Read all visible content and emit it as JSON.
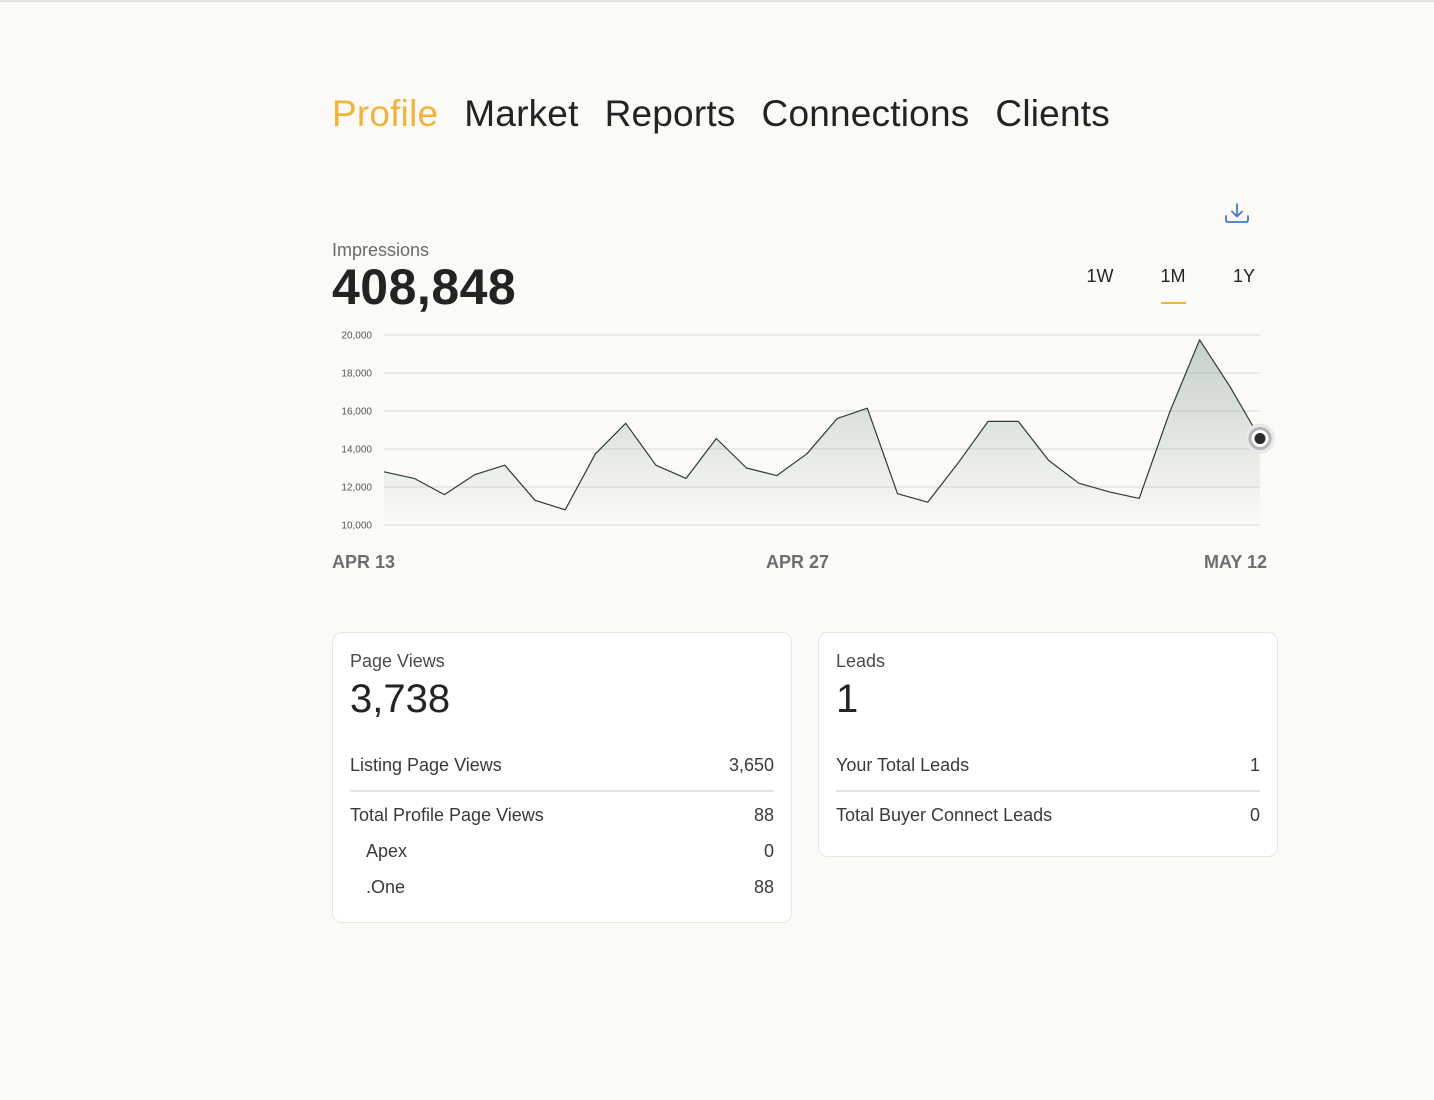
{
  "nav": {
    "tabs": [
      {
        "label": "Profile",
        "active": true
      },
      {
        "label": "Market",
        "active": false
      },
      {
        "label": "Reports",
        "active": false
      },
      {
        "label": "Connections",
        "active": false
      },
      {
        "label": "Clients",
        "active": false
      }
    ]
  },
  "impressions": {
    "label": "Impressions",
    "value": "408,848"
  },
  "ranges": [
    {
      "label": "1W",
      "active": false
    },
    {
      "label": "1M",
      "active": true
    },
    {
      "label": "1Y",
      "active": false
    }
  ],
  "colors": {
    "accent": "#f0b43c",
    "line": "#2e3b31",
    "area": "#9aae9e"
  },
  "icons": {
    "download": "download-icon"
  },
  "chart_data": {
    "type": "area",
    "ylim": [
      10000,
      20000
    ],
    "yticks": [
      "20,000",
      "18,000",
      "16,000",
      "14,000",
      "12,000",
      "10,000"
    ],
    "ytick_values": [
      20000,
      18000,
      16000,
      14000,
      12000,
      10000
    ],
    "xticks": [
      {
        "label": "APR 13",
        "index": 0
      },
      {
        "label": "APR 27",
        "index": 14
      },
      {
        "label": "MAY 12",
        "index": 29
      }
    ],
    "x": [
      "Apr 13",
      "Apr 14",
      "Apr 15",
      "Apr 16",
      "Apr 17",
      "Apr 18",
      "Apr 19",
      "Apr 20",
      "Apr 21",
      "Apr 22",
      "Apr 23",
      "Apr 24",
      "Apr 25",
      "Apr 26",
      "Apr 27",
      "Apr 28",
      "Apr 29",
      "Apr 30",
      "May 1",
      "May 2",
      "May 3",
      "May 4",
      "May 5",
      "May 6",
      "May 7",
      "May 8",
      "May 9",
      "May 10",
      "May 11",
      "May 12"
    ],
    "values": [
      12800,
      12450,
      11600,
      12650,
      13150,
      11300,
      10800,
      13750,
      15350,
      13150,
      12450,
      14550,
      13000,
      12600,
      13750,
      15600,
      16150,
      11650,
      11200,
      13250,
      15450,
      15450,
      13400,
      12200,
      11750,
      11400,
      15900,
      19750,
      17300,
      14550
    ],
    "grid": true,
    "legend": "none",
    "highlight_index": 29
  },
  "page_views": {
    "title": "Page Views",
    "value": "3,738",
    "rows": [
      {
        "label": "Listing Page Views",
        "value": "3,650"
      },
      {
        "label": "Total Profile Page Views",
        "value": "88"
      }
    ],
    "sub_rows": [
      {
        "label": "Apex",
        "value": "0"
      },
      {
        "label": ".One",
        "value": "88"
      }
    ]
  },
  "leads": {
    "title": "Leads",
    "value": "1",
    "rows": [
      {
        "label": "Your Total Leads",
        "value": "1"
      },
      {
        "label": "Total Buyer Connect Leads",
        "value": "0"
      }
    ]
  }
}
